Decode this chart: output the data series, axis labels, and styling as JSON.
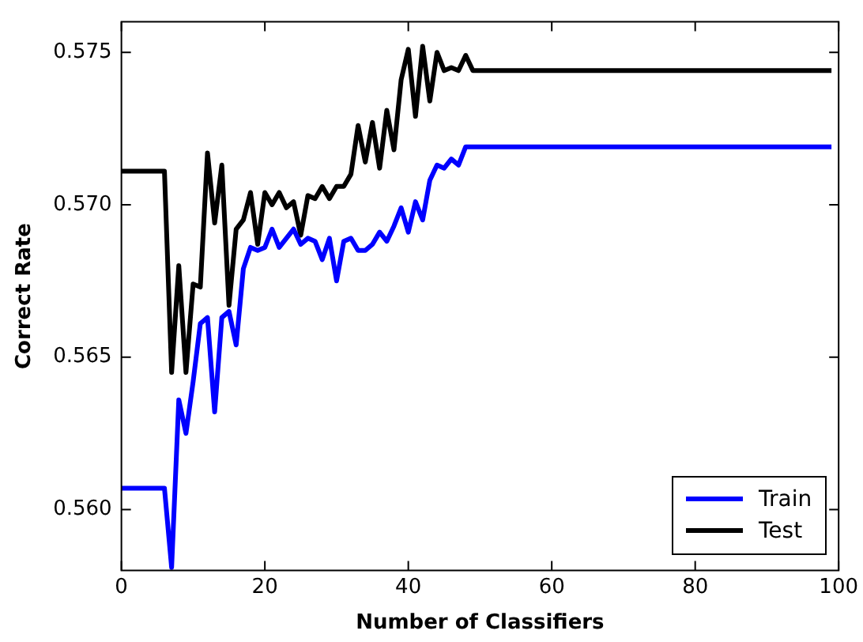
{
  "chart_data": {
    "type": "line",
    "xlabel": "Number of Classifiers",
    "ylabel": "Correct Rate",
    "x": [
      0,
      6,
      7,
      8,
      9,
      10,
      11,
      12,
      13,
      14,
      15,
      16,
      17,
      18,
      19,
      20,
      21,
      22,
      23,
      24,
      25,
      26,
      27,
      28,
      29,
      30,
      31,
      32,
      33,
      34,
      35,
      36,
      37,
      38,
      39,
      40,
      41,
      42,
      43,
      44,
      45,
      46,
      47,
      48,
      49,
      99
    ],
    "series": [
      {
        "name": "Train",
        "color": "#0000ff",
        "values": [
          0.5607,
          0.5607,
          0.5581,
          0.5636,
          0.5625,
          0.5642,
          0.5661,
          0.5663,
          0.5632,
          0.5663,
          0.5665,
          0.5654,
          0.5679,
          0.5686,
          0.5685,
          0.5686,
          0.5692,
          0.5686,
          0.5689,
          0.5692,
          0.5687,
          0.5689,
          0.5688,
          0.5682,
          0.5689,
          0.5675,
          0.5688,
          0.5689,
          0.5685,
          0.5685,
          0.5687,
          0.5691,
          0.5688,
          0.5693,
          0.5699,
          0.5691,
          0.5701,
          0.5695,
          0.5708,
          0.5713,
          0.5712,
          0.5715,
          0.5713,
          0.5719,
          0.5719,
          0.5719
        ]
      },
      {
        "name": "Test",
        "color": "#000000",
        "values": [
          0.5711,
          0.5711,
          0.5645,
          0.568,
          0.5645,
          0.5674,
          0.5673,
          0.5717,
          0.5694,
          0.5713,
          0.5667,
          0.5692,
          0.5695,
          0.5704,
          0.5687,
          0.5704,
          0.57,
          0.5704,
          0.5699,
          0.5701,
          0.569,
          0.5703,
          0.5702,
          0.5706,
          0.5702,
          0.5706,
          0.5706,
          0.571,
          0.5726,
          0.5714,
          0.5727,
          0.5712,
          0.5731,
          0.5718,
          0.5741,
          0.5751,
          0.5729,
          0.5752,
          0.5734,
          0.575,
          0.5744,
          0.5745,
          0.5744,
          0.5749,
          0.5744,
          0.5744
        ]
      }
    ],
    "xlim": [
      0,
      100
    ],
    "xticks": [
      0,
      20,
      40,
      60,
      80,
      100
    ],
    "ylim": [
      0.558,
      0.576
    ],
    "yticks": [
      {
        "value": 0.56,
        "label": "0.560"
      },
      {
        "value": 0.565,
        "label": "0.565"
      },
      {
        "value": 0.57,
        "label": "0.570"
      },
      {
        "value": 0.575,
        "label": "0.575"
      }
    ],
    "legend": "bottom right",
    "grid": false,
    "marker": "none",
    "line_style": "solid"
  }
}
